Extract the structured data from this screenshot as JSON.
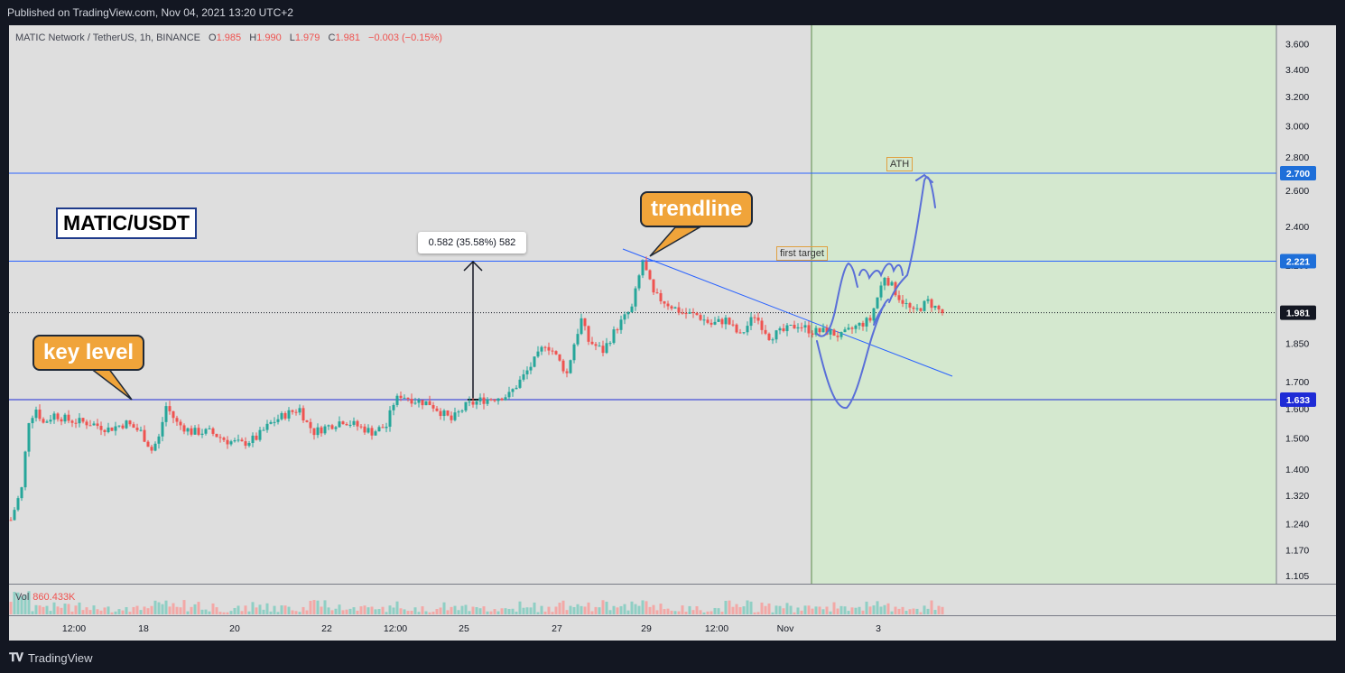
{
  "header": {
    "published": "Published on TradingView.com, Nov 04, 2021 13:20 UTC+2"
  },
  "footer": {
    "brand": "TradingView"
  },
  "legend": {
    "symbol": "MATIC Network / TetherUS, 1h, BINANCE",
    "open_k": "O",
    "open": "1.985",
    "high_k": "H",
    "high": "1.990",
    "low_k": "L",
    "low": "1.979",
    "close_k": "C",
    "close": "1.981",
    "change": "−0.003 (−0.15%)"
  },
  "volume": {
    "label": "Vol",
    "value": "860.433K"
  },
  "annotations": {
    "title": "MATIC/USDT",
    "key_level": "key level",
    "trendline": "trendline",
    "measure": "0.582 (35.58%) 582",
    "first_target": "first target",
    "ath": "ATH"
  },
  "colors": {
    "background": "#131722",
    "pane": "#dedede",
    "projection_zone": "#d4e8cf",
    "up": "#26a69a",
    "down": "#ef5350",
    "level_line": "#1e2bd6",
    "trend_line": "#2962ff",
    "drawing": "#5a6fd8",
    "callout": "#f0a43a"
  },
  "chart_data": {
    "type": "candlestick",
    "symbol": "MATICUSDT",
    "interval": "1h",
    "exchange": "BINANCE",
    "y_scale": "log",
    "ylim": [
      1.07,
      3.75
    ],
    "price_ticks": [
      3.6,
      3.4,
      3.2,
      3.0,
      2.8,
      2.6,
      2.4,
      2.2,
      1.85,
      1.7,
      1.6,
      1.5,
      1.4,
      1.32,
      1.24,
      1.17,
      1.105
    ],
    "price_tick_labels": [
      "3.600",
      "3.400",
      "3.200",
      "3.000",
      "2.800",
      "2.600",
      "2.400",
      "2.200",
      "1.850",
      "1.700",
      "1.600",
      "1.500",
      "1.400",
      "1.320",
      "1.240",
      "1.170",
      "1.105"
    ],
    "time_labels": [
      "12:00",
      "18",
      "20",
      "22",
      "12:00",
      "25",
      "27",
      "29",
      "12:00",
      "Nov",
      "3"
    ],
    "marked_levels": [
      {
        "label": "2.700",
        "value": 2.7,
        "style": "line"
      },
      {
        "label": "2.221",
        "value": 2.221,
        "style": "line"
      },
      {
        "label": "1.981",
        "value": 1.981,
        "style": "dotted",
        "current": true
      },
      {
        "label": "1.633",
        "value": 1.633,
        "style": "line"
      }
    ],
    "price_path": [
      {
        "t": 0,
        "p": 1.25
      },
      {
        "t": 3,
        "p": 1.34
      },
      {
        "t": 5,
        "p": 1.56
      },
      {
        "t": 7,
        "p": 1.6
      },
      {
        "t": 9,
        "p": 1.55
      },
      {
        "t": 12,
        "p": 1.58
      },
      {
        "t": 16,
        "p": 1.56
      },
      {
        "t": 22,
        "p": 1.55
      },
      {
        "t": 27,
        "p": 1.53
      },
      {
        "t": 32,
        "p": 1.55
      },
      {
        "t": 36,
        "p": 1.52
      },
      {
        "t": 39,
        "p": 1.46
      },
      {
        "t": 41,
        "p": 1.5
      },
      {
        "t": 43,
        "p": 1.61
      },
      {
        "t": 46,
        "p": 1.55
      },
      {
        "t": 50,
        "p": 1.52
      },
      {
        "t": 55,
        "p": 1.52
      },
      {
        "t": 60,
        "p": 1.49
      },
      {
        "t": 64,
        "p": 1.48
      },
      {
        "t": 68,
        "p": 1.5
      },
      {
        "t": 72,
        "p": 1.55
      },
      {
        "t": 76,
        "p": 1.58
      },
      {
        "t": 80,
        "p": 1.6
      },
      {
        "t": 82,
        "p": 1.55
      },
      {
        "t": 84,
        "p": 1.52
      },
      {
        "t": 88,
        "p": 1.54
      },
      {
        "t": 92,
        "p": 1.56
      },
      {
        "t": 96,
        "p": 1.54
      },
      {
        "t": 100,
        "p": 1.52
      },
      {
        "t": 104,
        "p": 1.54
      },
      {
        "t": 106,
        "p": 1.62
      },
      {
        "t": 108,
        "p": 1.65
      },
      {
        "t": 112,
        "p": 1.63
      },
      {
        "t": 116,
        "p": 1.62
      },
      {
        "t": 120,
        "p": 1.58
      },
      {
        "t": 122,
        "p": 1.56
      },
      {
        "t": 126,
        "p": 1.61
      },
      {
        "t": 130,
        "p": 1.63
      },
      {
        "t": 134,
        "p": 1.64
      },
      {
        "t": 138,
        "p": 1.65
      },
      {
        "t": 142,
        "p": 1.72
      },
      {
        "t": 146,
        "p": 1.8
      },
      {
        "t": 148,
        "p": 1.85
      },
      {
        "t": 150,
        "p": 1.82
      },
      {
        "t": 154,
        "p": 1.73
      },
      {
        "t": 156,
        "p": 1.85
      },
      {
        "t": 158,
        "p": 1.95
      },
      {
        "t": 160,
        "p": 1.86
      },
      {
        "t": 164,
        "p": 1.82
      },
      {
        "t": 168,
        "p": 1.92
      },
      {
        "t": 172,
        "p": 2.0
      },
      {
        "t": 175,
        "p": 2.22
      },
      {
        "t": 178,
        "p": 2.06
      },
      {
        "t": 182,
        "p": 2.02
      },
      {
        "t": 186,
        "p": 1.98
      },
      {
        "t": 190,
        "p": 1.97
      },
      {
        "t": 194,
        "p": 1.93
      },
      {
        "t": 198,
        "p": 1.95
      },
      {
        "t": 202,
        "p": 1.88
      },
      {
        "t": 206,
        "p": 1.97
      },
      {
        "t": 210,
        "p": 1.88
      },
      {
        "t": 214,
        "p": 1.9
      },
      {
        "t": 218,
        "p": 1.93
      },
      {
        "t": 222,
        "p": 1.9
      },
      {
        "t": 226,
        "p": 1.9
      },
      {
        "t": 230,
        "p": 1.88
      },
      {
        "t": 234,
        "p": 1.92
      },
      {
        "t": 238,
        "p": 1.95
      },
      {
        "t": 242,
        "p": 2.15
      },
      {
        "t": 246,
        "p": 2.05
      },
      {
        "t": 250,
        "p": 1.98
      },
      {
        "t": 254,
        "p": 2.03
      },
      {
        "t": 258,
        "p": 1.98
      }
    ]
  }
}
